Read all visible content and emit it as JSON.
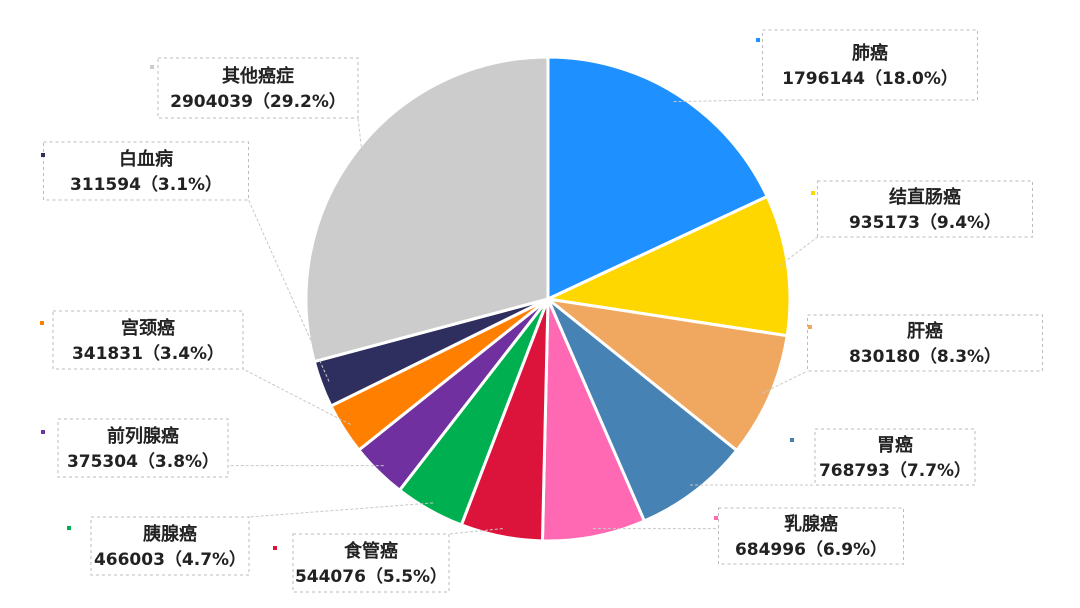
{
  "chart_data": {
    "type": "pie",
    "title": "",
    "slices": [
      {
        "name": "肺癌",
        "value": 1796144,
        "label": "1796144（18.0%）",
        "color": "#1E90FF"
      },
      {
        "name": "结直肠癌",
        "value": 935173,
        "label": "935173（9.4%）",
        "color": "#FFD700"
      },
      {
        "name": "肝癌",
        "value": 830180,
        "label": "830180（8.3%）",
        "color": "#F0A860"
      },
      {
        "name": "胃癌",
        "value": 768793,
        "label": "768793（7.7%）",
        "color": "#4682B4"
      },
      {
        "name": "乳腺癌",
        "value": 684996,
        "label": "684996（6.9%）",
        "color": "#FF69B4"
      },
      {
        "name": "食管癌",
        "value": 544076,
        "label": "544076（5.5%）",
        "color": "#DC143C"
      },
      {
        "name": "胰腺癌",
        "value": 466003,
        "label": "466003（4.7%）",
        "color": "#00B050"
      },
      {
        "name": "前列腺癌",
        "value": 375304,
        "label": "375304（3.8%）",
        "color": "#7030A0"
      },
      {
        "name": "宫颈癌",
        "value": 341831,
        "label": "341831（3.4%）",
        "color": "#FF7F00"
      },
      {
        "name": "白血病",
        "value": 311594,
        "label": "311594（3.1%）",
        "color": "#2F2F5F"
      },
      {
        "name": "其他癌症",
        "value": 2904039,
        "label": "2904039（29.2%）",
        "color": "#CCCCCC"
      }
    ]
  }
}
